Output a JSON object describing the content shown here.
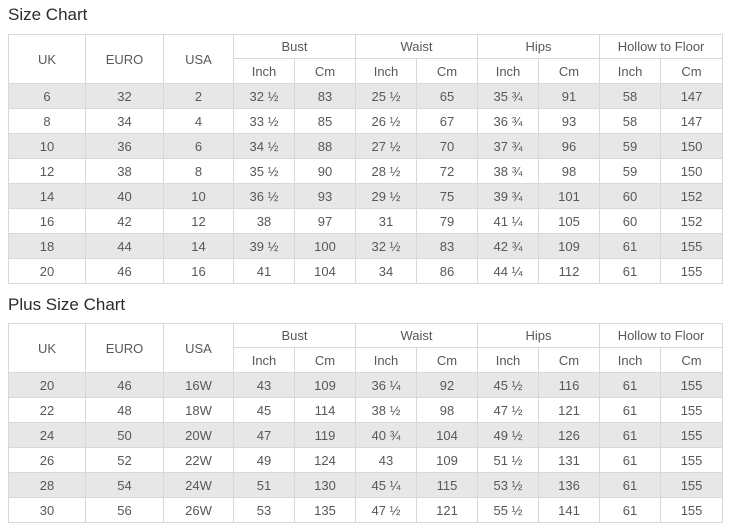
{
  "colors": {
    "stripe": "#e7e7e7",
    "border": "#d8d8d8",
    "cell_text": "#585858",
    "title_text": "#2b2b2b"
  },
  "header": {
    "uk": "UK",
    "euro": "EURO",
    "usa": "USA",
    "bust": "Bust",
    "waist": "Waist",
    "hips": "Hips",
    "hollow_to_floor": "Hollow to Floor",
    "inch": "Inch",
    "cm": "Cm"
  },
  "tables": [
    {
      "title": "Size Chart",
      "rows": [
        [
          "6",
          "32",
          "2",
          "32 ½",
          "83",
          "25 ½",
          "65",
          "35 ¾",
          "91",
          "58",
          "147"
        ],
        [
          "8",
          "34",
          "4",
          "33 ½",
          "85",
          "26 ½",
          "67",
          "36 ¾",
          "93",
          "58",
          "147"
        ],
        [
          "10",
          "36",
          "6",
          "34 ½",
          "88",
          "27 ½",
          "70",
          "37 ¾",
          "96",
          "59",
          "150"
        ],
        [
          "12",
          "38",
          "8",
          "35 ½",
          "90",
          "28 ½",
          "72",
          "38 ¾",
          "98",
          "59",
          "150"
        ],
        [
          "14",
          "40",
          "10",
          "36 ½",
          "93",
          "29 ½",
          "75",
          "39 ¾",
          "101",
          "60",
          "152"
        ],
        [
          "16",
          "42",
          "12",
          "38",
          "97",
          "31",
          "79",
          "41 ¼",
          "105",
          "60",
          "152"
        ],
        [
          "18",
          "44",
          "14",
          "39 ½",
          "100",
          "32 ½",
          "83",
          "42 ¾",
          "109",
          "61",
          "155"
        ],
        [
          "20",
          "46",
          "16",
          "41",
          "104",
          "34",
          "86",
          "44 ¼",
          "112",
          "61",
          "155"
        ]
      ]
    },
    {
      "title": "Plus Size Chart",
      "rows": [
        [
          "20",
          "46",
          "16W",
          "43",
          "109",
          "36 ¼",
          "92",
          "45 ½",
          "116",
          "61",
          "155"
        ],
        [
          "22",
          "48",
          "18W",
          "45",
          "114",
          "38 ½",
          "98",
          "47 ½",
          "121",
          "61",
          "155"
        ],
        [
          "24",
          "50",
          "20W",
          "47",
          "119",
          "40 ¾",
          "104",
          "49 ½",
          "126",
          "61",
          "155"
        ],
        [
          "26",
          "52",
          "22W",
          "49",
          "124",
          "43",
          "109",
          "51 ½",
          "131",
          "61",
          "155"
        ],
        [
          "28",
          "54",
          "24W",
          "51",
          "130",
          "45 ¼",
          "115",
          "53 ½",
          "136",
          "61",
          "155"
        ],
        [
          "30",
          "56",
          "26W",
          "53",
          "135",
          "47 ½",
          "121",
          "55 ½",
          "141",
          "61",
          "155"
        ]
      ]
    }
  ]
}
